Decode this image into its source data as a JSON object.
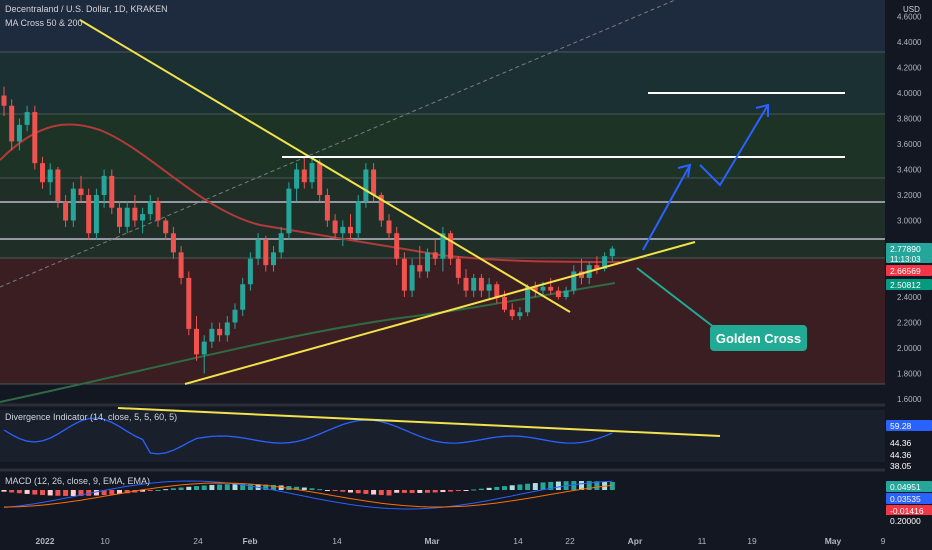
{
  "header": {
    "title": "Decentraland / U.S. Dollar, 1D, KRAKEN",
    "indicator": "MA Cross 50 & 200",
    "currency": "USD"
  },
  "annotation": {
    "label": "Golden Cross"
  },
  "price_axis": {
    "ticks": [
      "4.6000",
      "4.4000",
      "4.2000",
      "4.0000",
      "3.8000",
      "3.6000",
      "3.4000",
      "3.2000",
      "3.0000",
      "2.4000",
      "2.2000",
      "2.0000",
      "1.8000",
      "1.6000"
    ],
    "badges": [
      {
        "value": "2.77890",
        "sub": "11:13:03",
        "color": "#26a69a"
      },
      {
        "value": "2.66569",
        "color": "#f23645"
      },
      {
        "value": "2.50812",
        "color": "#089981"
      }
    ]
  },
  "time_axis": {
    "labels": [
      "2022",
      "10",
      "24",
      "Feb",
      "14",
      "Mar",
      "14",
      "22",
      "Apr",
      "11",
      "19",
      "May",
      "9"
    ]
  },
  "divergence": {
    "title": "Divergence Indicator (14, close, 5, 5, 60, 5)",
    "badges": [
      {
        "value": "59.28",
        "color": "#2962ff"
      },
      {
        "value": "44.36",
        "color": "#131722"
      },
      {
        "value": "44.36",
        "color": "#131722"
      },
      {
        "value": "38.05",
        "color": "#131722"
      }
    ]
  },
  "macd": {
    "title": "MACD (12, 26, close, 9, EMA, EMA)",
    "badges": [
      {
        "value": "0.04951",
        "color": "#26a69a"
      },
      {
        "value": "0.03535",
        "color": "#2962ff"
      },
      {
        "value": "-0.01416",
        "color": "#f23645"
      },
      {
        "value": "0.20000",
        "color": "#131722"
      }
    ]
  },
  "chart_data": {
    "type": "candlestick",
    "title": "Decentraland / U.S. Dollar, 1D, KRAKEN",
    "ylim": [
      1.6,
      4.6
    ],
    "days": [
      [
        3.98,
        4.05,
        3.82,
        3.9
      ],
      [
        3.9,
        3.95,
        3.55,
        3.62
      ],
      [
        3.62,
        3.8,
        3.55,
        3.75
      ],
      [
        3.75,
        3.9,
        3.7,
        3.85
      ],
      [
        3.85,
        3.9,
        3.4,
        3.45
      ],
      [
        3.45,
        3.5,
        3.25,
        3.3
      ],
      [
        3.3,
        3.45,
        3.2,
        3.4
      ],
      [
        3.4,
        3.42,
        3.1,
        3.15
      ],
      [
        3.15,
        3.2,
        2.95,
        3.0
      ],
      [
        3.0,
        3.3,
        2.95,
        3.25
      ],
      [
        3.25,
        3.35,
        3.15,
        3.2
      ],
      [
        3.2,
        3.25,
        2.85,
        2.9
      ],
      [
        2.9,
        3.25,
        2.85,
        3.2
      ],
      [
        3.2,
        3.4,
        3.1,
        3.35
      ],
      [
        3.35,
        3.4,
        3.05,
        3.1
      ],
      [
        3.1,
        3.15,
        2.9,
        2.95
      ],
      [
        2.95,
        3.15,
        2.9,
        3.1
      ],
      [
        3.1,
        3.2,
        2.95,
        3.0
      ],
      [
        3.0,
        3.1,
        2.9,
        3.05
      ],
      [
        3.05,
        3.2,
        3.0,
        3.15
      ],
      [
        3.15,
        3.18,
        2.95,
        3.0
      ],
      [
        3.0,
        3.02,
        2.85,
        2.9
      ],
      [
        2.9,
        2.95,
        2.7,
        2.75
      ],
      [
        2.75,
        2.8,
        2.5,
        2.55
      ],
      [
        2.55,
        2.6,
        2.1,
        2.15
      ],
      [
        2.15,
        2.25,
        1.9,
        1.95
      ],
      [
        1.95,
        2.1,
        1.8,
        2.05
      ],
      [
        2.05,
        2.2,
        2.0,
        2.15
      ],
      [
        2.15,
        2.2,
        2.05,
        2.1
      ],
      [
        2.1,
        2.25,
        2.05,
        2.2
      ],
      [
        2.2,
        2.35,
        2.15,
        2.3
      ],
      [
        2.3,
        2.55,
        2.25,
        2.5
      ],
      [
        2.5,
        2.75,
        2.45,
        2.7
      ],
      [
        2.7,
        2.9,
        2.65,
        2.85
      ],
      [
        2.85,
        2.88,
        2.6,
        2.65
      ],
      [
        2.65,
        2.8,
        2.6,
        2.75
      ],
      [
        2.75,
        2.95,
        2.7,
        2.9
      ],
      [
        2.9,
        3.3,
        2.85,
        3.25
      ],
      [
        3.25,
        3.45,
        3.15,
        3.4
      ],
      [
        3.4,
        3.5,
        3.25,
        3.3
      ],
      [
        3.3,
        3.5,
        3.25,
        3.45
      ],
      [
        3.45,
        3.48,
        3.15,
        3.2
      ],
      [
        3.2,
        3.25,
        2.95,
        3.0
      ],
      [
        3.0,
        3.05,
        2.85,
        2.9
      ],
      [
        2.9,
        3.0,
        2.8,
        2.95
      ],
      [
        2.95,
        3.05,
        2.85,
        2.9
      ],
      [
        2.9,
        3.2,
        2.85,
        3.15
      ],
      [
        3.15,
        3.45,
        3.1,
        3.4
      ],
      [
        3.4,
        3.45,
        3.15,
        3.2
      ],
      [
        3.2,
        3.22,
        2.95,
        3.0
      ],
      [
        3.0,
        3.05,
        2.85,
        2.9
      ],
      [
        2.9,
        2.95,
        2.65,
        2.7
      ],
      [
        2.7,
        2.75,
        2.4,
        2.45
      ],
      [
        2.45,
        2.7,
        2.4,
        2.65
      ],
      [
        2.65,
        2.8,
        2.55,
        2.6
      ],
      [
        2.6,
        2.78,
        2.55,
        2.75
      ],
      [
        2.75,
        2.85,
        2.65,
        2.7
      ],
      [
        2.7,
        2.95,
        2.6,
        2.9
      ],
      [
        2.9,
        2.92,
        2.65,
        2.7
      ],
      [
        2.7,
        2.72,
        2.5,
        2.55
      ],
      [
        2.55,
        2.62,
        2.4,
        2.45
      ],
      [
        2.45,
        2.58,
        2.4,
        2.55
      ],
      [
        2.55,
        2.58,
        2.4,
        2.45
      ],
      [
        2.45,
        2.55,
        2.38,
        2.5
      ],
      [
        2.5,
        2.52,
        2.35,
        2.4
      ],
      [
        2.4,
        2.45,
        2.28,
        2.3
      ],
      [
        2.3,
        2.35,
        2.22,
        2.25
      ],
      [
        2.25,
        2.32,
        2.22,
        2.28
      ],
      [
        2.28,
        2.5,
        2.25,
        2.48
      ],
      [
        2.48,
        2.52,
        2.4,
        2.45
      ],
      [
        2.45,
        2.52,
        2.4,
        2.48
      ],
      [
        2.48,
        2.55,
        2.42,
        2.45
      ],
      [
        2.45,
        2.48,
        2.38,
        2.4
      ],
      [
        2.4,
        2.48,
        2.38,
        2.45
      ],
      [
        2.45,
        2.65,
        2.42,
        2.6
      ],
      [
        2.6,
        2.7,
        2.5,
        2.55
      ],
      [
        2.55,
        2.68,
        2.5,
        2.65
      ],
      [
        2.65,
        2.72,
        2.58,
        2.62
      ],
      [
        2.62,
        2.75,
        2.6,
        2.72
      ],
      [
        2.72,
        2.8,
        2.68,
        2.78
      ]
    ]
  }
}
